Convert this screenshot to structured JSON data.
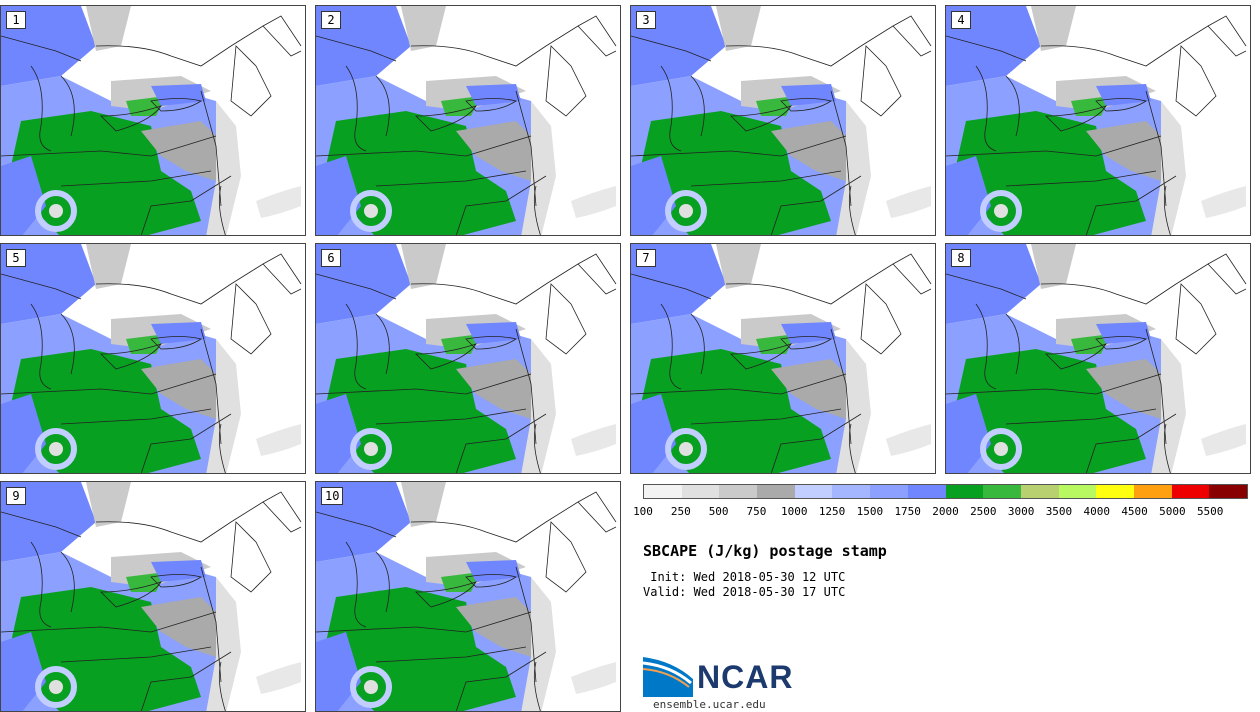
{
  "members": [
    {
      "label": "1"
    },
    {
      "label": "2"
    },
    {
      "label": "3"
    },
    {
      "label": "4"
    },
    {
      "label": "5"
    },
    {
      "label": "6"
    },
    {
      "label": "7"
    },
    {
      "label": "8"
    },
    {
      "label": "9"
    },
    {
      "label": "10"
    }
  ],
  "colorbar": {
    "ticks": [
      "100",
      "250",
      "500",
      "750",
      "1000",
      "1250",
      "1500",
      "1750",
      "2000",
      "2500",
      "3000",
      "3500",
      "4000",
      "4500",
      "5000",
      "5500"
    ],
    "colors": [
      "#f3f3f3",
      "#e0e0e0",
      "#cacaca",
      "#aaaaaa",
      "#c2ceff",
      "#a4b6ff",
      "#8ca0ff",
      "#7086ff",
      "#08a020",
      "#38b83c",
      "#b8d070",
      "#b8f860",
      "#ffff10",
      "#ffa010",
      "#ee0000",
      "#880000"
    ]
  },
  "title": "SBCAPE (J/kg) postage stamp",
  "init_line": " Init: Wed 2018-05-30 12 UTC",
  "valid_line": "Valid: Wed 2018-05-30 17 UTC",
  "logo": {
    "text": "NCAR",
    "url": "ensemble.ucar.edu",
    "icon": "ncar-logo-icon"
  }
}
